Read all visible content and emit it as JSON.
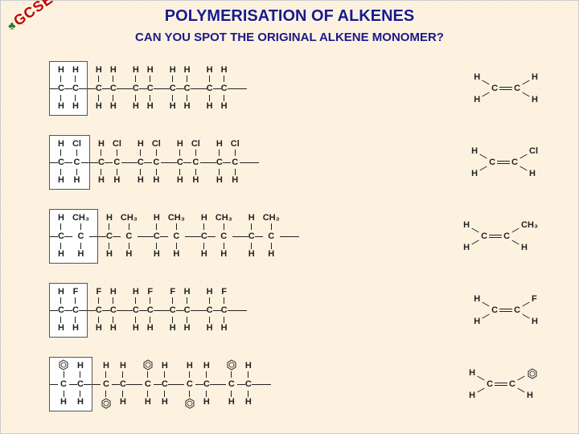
{
  "logo": "GCSE",
  "title": "POLYMERISATION OF ALKENES",
  "subtitle": "CAN YOU SPOT THE ORIGINAL ALKENE MONOMER?",
  "rows": [
    {
      "polymer_substituents": [
        [
          "H",
          "H"
        ],
        [
          "H",
          "H"
        ]
      ],
      "repeat": 5,
      "monomer": {
        "left": [
          "H",
          "H"
        ],
        "right": [
          "H",
          "H"
        ],
        "phenyl": false
      }
    },
    {
      "polymer_substituents": [
        [
          "H",
          "H"
        ],
        [
          "Cl",
          "H"
        ]
      ],
      "repeat": 5,
      "monomer": {
        "left": [
          "H",
          "H"
        ],
        "right": [
          "Cl",
          "H"
        ],
        "phenyl": false
      }
    },
    {
      "polymer_substituents": [
        [
          "H",
          "H"
        ],
        [
          "CH₃",
          "H"
        ]
      ],
      "repeat": 5,
      "monomer": {
        "left": [
          "H",
          "H"
        ],
        "right": [
          "CH₃",
          "H"
        ],
        "phenyl": false
      }
    },
    {
      "polymer_substituents": [
        [
          "H",
          "H"
        ],
        [
          "F",
          "H"
        ]
      ],
      "pattern": "alt",
      "repeat": 5,
      "monomer": {
        "left": [
          "H",
          "H"
        ],
        "right": [
          "F",
          "H"
        ],
        "phenyl": false
      }
    },
    {
      "polymer_substituents": [
        [
          "PH",
          "H"
        ],
        [
          "H",
          "H"
        ]
      ],
      "phenyl_alt": true,
      "repeat": 5,
      "monomer": {
        "left": [
          "H",
          "H"
        ],
        "right": [
          "PH",
          "H"
        ],
        "phenyl": true
      }
    }
  ],
  "colors": {
    "bg": "#fdf2e0",
    "title": "#1a1a8a",
    "logo": "#c00000",
    "line": "#222222"
  }
}
